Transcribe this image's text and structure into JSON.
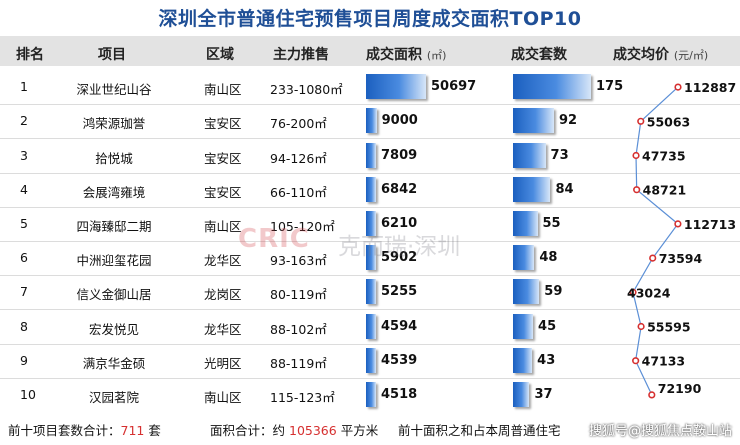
{
  "title": "深圳全市普通住宅预售项目周度成交面积TOP10",
  "headers": {
    "rank": "排名",
    "project": "项目",
    "district": "区域",
    "main_unit": "主力推售",
    "area": "成交面积",
    "area_unit": "(㎡)",
    "sets": "成交套数",
    "price": "成交均价",
    "price_unit": "(元/㎡)"
  },
  "rows": [
    {
      "rank": "1",
      "project": "深业世纪山谷",
      "district": "南山区",
      "unit_range": "233-1080㎡",
      "area": "50697",
      "sets": "175",
      "price": "112887"
    },
    {
      "rank": "2",
      "project": "鸿荣源珈誉",
      "district": "宝安区",
      "unit_range": "76-200㎡",
      "area": "9000",
      "sets": "92",
      "price": "55063"
    },
    {
      "rank": "3",
      "project": "拾悦城",
      "district": "宝安区",
      "unit_range": "94-126㎡",
      "area": "7809",
      "sets": "73",
      "price": "47735"
    },
    {
      "rank": "4",
      "project": "会展湾雍境",
      "district": "宝安区",
      "unit_range": "66-110㎡",
      "area": "6842",
      "sets": "84",
      "price": "48721"
    },
    {
      "rank": "5",
      "project": "四海臻邸二期",
      "district": "南山区",
      "unit_range": "105-120㎡",
      "area": "6210",
      "sets": "55",
      "price": "112713"
    },
    {
      "rank": "6",
      "project": "中洲迎玺花园",
      "district": "龙华区",
      "unit_range": "93-163㎡",
      "area": "5902",
      "sets": "48",
      "price": "73594"
    },
    {
      "rank": "7",
      "project": "信义金御山居",
      "district": "龙岗区",
      "unit_range": "80-119㎡",
      "area": "5255",
      "sets": "59",
      "price": "43024"
    },
    {
      "rank": "8",
      "project": "宏发悦见",
      "district": "龙华区",
      "unit_range": "88-102㎡",
      "area": "4594",
      "sets": "45",
      "price": "55595"
    },
    {
      "rank": "9",
      "project": "满京华金硕",
      "district": "光明区",
      "unit_range": "88-119㎡",
      "area": "4539",
      "sets": "43",
      "price": "47133"
    },
    {
      "rank": "10",
      "project": "汉园茗院",
      "district": "南山区",
      "unit_range": "115-123㎡",
      "area": "4518",
      "sets": "37",
      "price": "72190"
    }
  ],
  "chart_data": {
    "type": "table",
    "categories": [
      "深业世纪山谷",
      "鸿荣源珈誉",
      "拾悦城",
      "会展湾雍境",
      "四海臻邸二期",
      "中洲迎玺花园",
      "信义金御山居",
      "宏发悦见",
      "满京华金硕",
      "汉园茗院"
    ],
    "series": [
      {
        "name": "成交面积",
        "values": [
          50697,
          9000,
          7809,
          6842,
          6210,
          5902,
          5255,
          4594,
          4539,
          4518
        ]
      },
      {
        "name": "成交套数",
        "values": [
          175,
          92,
          73,
          84,
          55,
          48,
          59,
          45,
          43,
          37
        ]
      },
      {
        "name": "成交均价",
        "values": [
          112887,
          55063,
          47735,
          48721,
          112713,
          73594,
          43024,
          55595,
          47133,
          72190
        ]
      }
    ]
  },
  "footer": {
    "sets_label": "前十项目套数合计：",
    "sets_total": "711",
    "sets_suffix": "套",
    "area_label": "面积合计：约",
    "area_total": "105366",
    "area_suffix": "平方米",
    "share_text": "前十面积之和占本周普通住宅",
    "signature": "搜狐号@搜狐焦点鞍山站"
  },
  "watermark": {
    "brand": "CRIC",
    "text": "克而瑞·深圳"
  },
  "colors": {
    "title": "#1f4f96",
    "bar": "#1b5fbf",
    "line": "#5b8fd6",
    "marker": "#d63030"
  }
}
